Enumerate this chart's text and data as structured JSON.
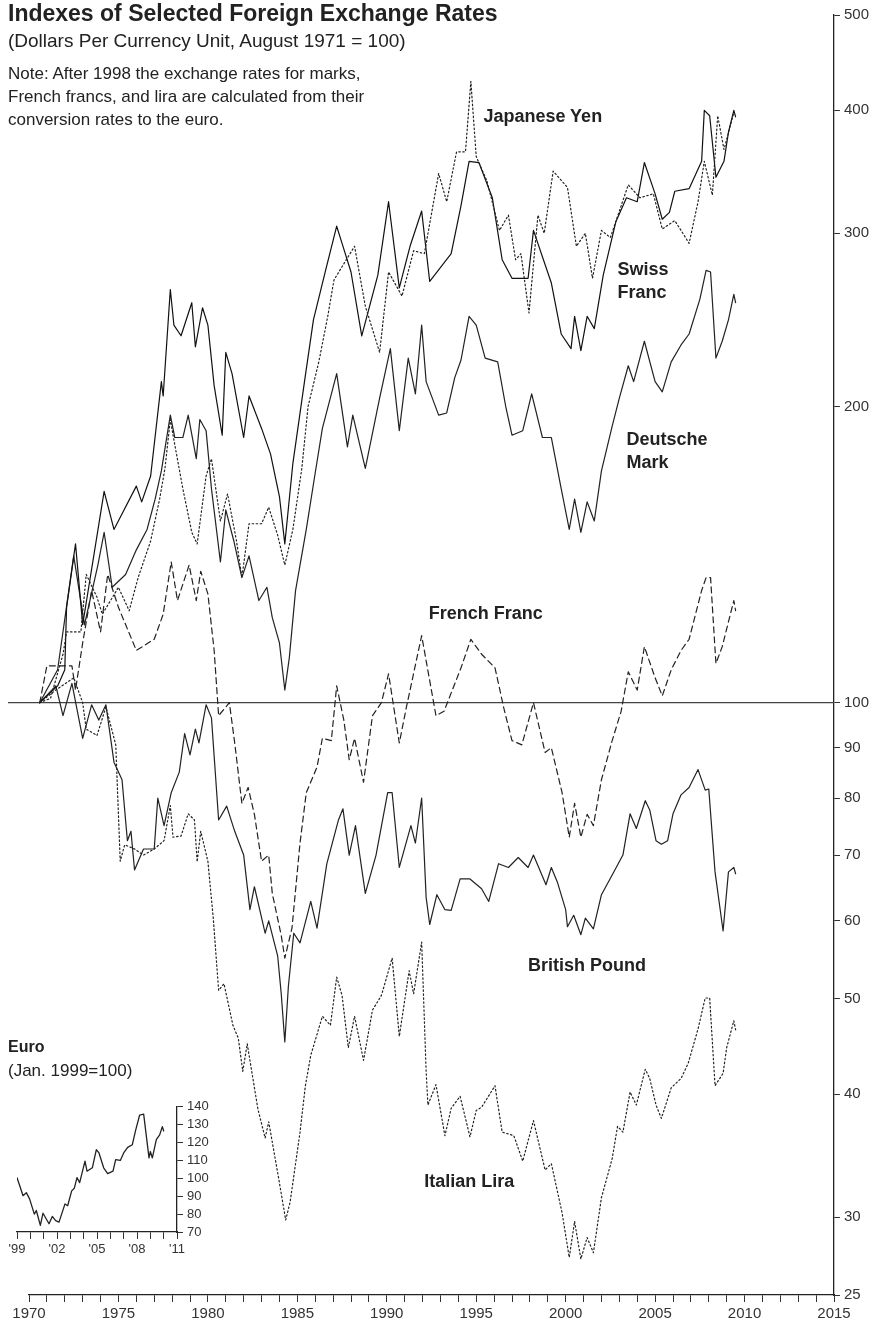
{
  "chart_data": [
    {
      "type": "line",
      "title": "Indexes of Selected Foreign Exchange Rates",
      "subtitle": "(Dollars Per Currency Unit, August 1971 = 100)",
      "annotations": [
        "Note: After 1998 the exchange rates for marks, French francs, and lira are calculated from their conversion rates to the euro."
      ],
      "xlim": [
        1970,
        2015
      ],
      "xticks": [
        1970,
        {
          "value": 1971,
          "label": null
        },
        {
          "value": 1972,
          "label": null
        },
        {
          "value": 1973,
          "label": null
        },
        {
          "value": 1974,
          "label": null
        },
        1975,
        {
          "value": 1976,
          "label": null
        },
        {
          "value": 1977,
          "label": null
        },
        {
          "value": 1978,
          "label": null
        },
        {
          "value": 1979,
          "label": null
        },
        1980,
        {
          "value": 1981,
          "label": null
        },
        {
          "value": 1982,
          "label": null
        },
        {
          "value": 1983,
          "label": null
        },
        {
          "value": 1984,
          "label": null
        },
        1985,
        {
          "value": 1986,
          "label": null
        },
        {
          "value": 1987,
          "label": null
        },
        {
          "value": 1988,
          "label": null
        },
        {
          "value": 1989,
          "label": null
        },
        1990,
        {
          "value": 1991,
          "label": null
        },
        {
          "value": 1992,
          "label": null
        },
        {
          "value": 1993,
          "label": null
        },
        {
          "value": 1994,
          "label": null
        },
        1995,
        {
          "value": 1996,
          "label": null
        },
        {
          "value": 1997,
          "label": null
        },
        {
          "value": 1998,
          "label": null
        },
        {
          "value": 1999,
          "label": null
        },
        2000,
        {
          "value": 2001,
          "label": null
        },
        {
          "value": 2002,
          "label": null
        },
        {
          "value": 2003,
          "label": null
        },
        {
          "value": 2004,
          "label": null
        },
        2005,
        {
          "value": 2006,
          "label": null
        },
        {
          "value": 2007,
          "label": null
        },
        {
          "value": 2008,
          "label": null
        },
        {
          "value": 2009,
          "label": null
        },
        2010,
        {
          "value": 2011,
          "label": null
        },
        {
          "value": 2012,
          "label": null
        },
        {
          "value": 2013,
          "label": null
        },
        {
          "value": 2014,
          "label": null
        },
        2015
      ],
      "ylim": [
        25,
        500
      ],
      "yticks": [
        25,
        30,
        40,
        50,
        60,
        70,
        80,
        90,
        100,
        200,
        300,
        400,
        500
      ],
      "log": true,
      "grid": false,
      "legend": false,
      "marker": "none",
      "ref_lines": [
        {
          "axis": "y",
          "value": 100,
          "color": "#444444"
        }
      ],
      "series": [
        {
          "name": "Japanese Yen",
          "color": "#222222",
          "line_style": "dotted",
          "x": [
            1970.6,
            1971.2,
            1971.9,
            1972.1,
            1972.9,
            1973.2,
            1973.8,
            1974.1,
            1975.0,
            1975.6,
            1976.1,
            1976.8,
            1977.3,
            1977.6,
            1977.9,
            1978.1,
            1978.6,
            1979.1,
            1979.4,
            1979.9,
            1980.2,
            1980.7,
            1981.1,
            1981.6,
            1981.9,
            1982.3,
            1983.0,
            1983.4,
            1983.9,
            1984.3,
            1984.75,
            1985.25,
            1985.6,
            1986.2,
            1986.7,
            1987.05,
            1988.2,
            1988.8,
            1989.6,
            1990.1,
            1990.85,
            1991.5,
            1992.1,
            1992.9,
            1993.35,
            1993.9,
            1994.4,
            1994.7,
            1995.0,
            1995.6,
            1996.3,
            1996.8,
            1997.2,
            1997.5,
            1997.95,
            1998.45,
            1998.8,
            1999.3,
            2000.1,
            2000.6,
            2001.1,
            2001.5,
            2002.0,
            2002.5,
            2003.0,
            2003.5,
            2004.15,
            2004.9,
            2005.4,
            2006.1,
            2006.55,
            2006.9,
            2007.4,
            2007.75,
            2008.2,
            2008.5,
            2008.85,
            2009.4
          ],
          "values": [
            100,
            101,
            112,
            118,
            118,
            135,
            128,
            123,
            131,
            124,
            134,
            146,
            161,
            173,
            194,
            185,
            165,
            149,
            145,
            170,
            177,
            153,
            163,
            146,
            134,
            152,
            152,
            158,
            148,
            138,
            150,
            173,
            200,
            222,
            247,
            269,
            291,
            253,
            227,
            274,
            259,
            288,
            286,
            345,
            323,
            363,
            363,
            428,
            359,
            339,
            302,
            313,
            282,
            286,
            249,
            313,
            300,
            347,
            334,
            291,
            300,
            270,
            302,
            297,
            316,
            336,
            326,
            329,
            303,
            309,
            300,
            293,
            323,
            355,
            328,
            395,
            365,
            398
          ]
        },
        {
          "name": "Swiss Franc",
          "color": "#111111",
          "line_style": "solid",
          "x": [
            1970.6,
            1971.6,
            1972.0,
            1972.1,
            1972.6,
            1973.0,
            1974.2,
            1974.75,
            1976.0,
            1976.3,
            1976.8,
            1977.4,
            1977.5,
            1977.9,
            1978.1,
            1978.5,
            1979.1,
            1979.3,
            1979.7,
            1980.0,
            1980.35,
            1980.8,
            1981.0,
            1981.35,
            1982.0,
            1982.3,
            1983.0,
            1983.5,
            1984.0,
            1984.3,
            1984.75,
            1985.4,
            1985.9,
            1986.6,
            1987.2,
            1987.5,
            1988.0,
            1988.6,
            1989.5,
            1990.1,
            1990.7,
            1991.3,
            1991.95,
            1992.4,
            1993.6,
            1994.15,
            1994.6,
            1995.15,
            1995.9,
            1996.45,
            1997.0,
            1997.9,
            1998.2,
            1999.2,
            1999.75,
            2000.3,
            2000.5,
            2000.85,
            2001.2,
            2001.6,
            2002.1,
            2002.8,
            2003.4,
            2004.0,
            2004.4,
            2005.0,
            2005.4,
            2005.8,
            2006.1,
            2006.9,
            2007.6,
            2007.75,
            2008.05,
            2008.4,
            2008.85,
            2009.1,
            2009.4,
            2009.5
          ],
          "values": [
            100,
            104,
            108,
            125,
            145,
            120,
            164,
            150,
            166,
            160,
            170,
            212,
            205,
            263,
            242,
            236,
            255,
            230,
            252,
            242,
            210,
            187,
            227,
            216,
            186,
            205,
            190,
            179,
            162,
            145,
            175,
            212,
            245,
            276,
            305,
            293,
            274,
            236,
            272,
            323,
            264,
            291,
            316,
            268,
            286,
            320,
            355,
            354,
            326,
            282,
            270,
            270,
            302,
            267,
            237,
            229,
            247,
            228,
            247,
            240,
            272,
            308,
            326,
            323,
            354,
            329,
            310,
            315,
            331,
            333,
            355,
            400,
            395,
            342,
            355,
            380,
            400,
            394
          ]
        },
        {
          "name": "Deutsche Mark",
          "color": "#222222",
          "line_style": "solid",
          "x": [
            1970.6,
            1971.6,
            1972.5,
            1973.1,
            1973.85,
            1974.2,
            1974.65,
            1975.4,
            1976.0,
            1976.6,
            1977.05,
            1977.4,
            1977.9,
            1978.15,
            1978.6,
            1978.9,
            1979.35,
            1979.55,
            1979.9,
            1980.2,
            1980.7,
            1981.0,
            1981.45,
            1981.9,
            1982.3,
            1982.85,
            1983.3,
            1983.6,
            1984.0,
            1984.3,
            1984.55,
            1984.9,
            1985.5,
            1985.95,
            1986.4,
            1987.2,
            1987.4,
            1987.8,
            1988.1,
            1988.8,
            1989.6,
            1990.2,
            1990.7,
            1991.2,
            1991.6,
            1991.95,
            1992.2,
            1992.9,
            1993.35,
            1993.8,
            1994.15,
            1994.6,
            1995.0,
            1995.5,
            1996.2,
            1996.65,
            1997.0,
            1997.6,
            1998.1,
            1998.7,
            1999.2,
            1999.75,
            2000.2,
            2000.5,
            2000.85,
            2001.2,
            2001.6,
            2002.0,
            2002.6,
            2003.0,
            2003.5,
            2003.8,
            2004.4,
            2005.0,
            2005.4,
            2005.9,
            2006.45,
            2006.9,
            2007.5,
            2007.85,
            2008.1,
            2008.4,
            2008.75,
            2009.1,
            2009.4,
            2009.5
          ],
          "values": [
            100,
            108,
            141,
            120,
            138,
            149,
            131,
            135,
            143,
            150,
            161,
            172,
            196,
            186,
            186,
            196,
            177,
            194,
            189,
            165,
            139,
            157,
            146,
            134,
            141,
            127,
            131,
            122,
            115,
            103,
            111,
            130,
            150,
            169,
            190,
            216,
            204,
            182,
            196,
            173,
            204,
            229,
            189,
            224,
            206,
            242,
            212,
            196,
            197,
            214,
            223,
            247,
            242,
            224,
            222,
            200,
            187,
            189,
            206,
            186,
            186,
            165,
            150,
            161,
            149,
            160,
            153,
            172,
            191,
            204,
            220,
            212,
            233,
            212,
            207,
            222,
            231,
            237,
            257,
            275,
            274,
            224,
            233,
            245,
            260,
            255
          ]
        },
        {
          "name": "French Franc",
          "color": "#222222",
          "line_style": "dashed",
          "x": [
            1970.6,
            1971.0,
            1972.4,
            1972.6,
            1973.0,
            1973.5,
            1974.0,
            1974.4,
            1975.0,
            1976.0,
            1977.0,
            1977.5,
            1977.95,
            1978.3,
            1978.95,
            1979.35,
            1979.6,
            1980.0,
            1980.35,
            1980.6,
            1981.2,
            1981.5,
            1981.9,
            1982.25,
            1982.6,
            1983.0,
            1983.4,
            1983.6,
            1984.1,
            1984.3,
            1984.7,
            1985.15,
            1985.5,
            1986.1,
            1986.4,
            1986.9,
            1987.2,
            1987.6,
            1987.9,
            1988.2,
            1988.7,
            1989.2,
            1989.7,
            1990.1,
            1990.7,
            1991.1,
            1991.95,
            1992.75,
            1993.2,
            1994.15,
            1994.7,
            1995.3,
            1996.05,
            1996.55,
            1997.0,
            1997.55,
            1998.2,
            1998.85,
            1999.2,
            1999.8,
            2000.2,
            2000.5,
            2000.85,
            2001.2,
            2001.55,
            2002.0,
            2002.6,
            2003.1,
            2003.5,
            2004.0,
            2004.4,
            2005.0,
            2005.4,
            2005.9,
            2006.45,
            2006.9,
            2007.6,
            2007.85,
            2008.1,
            2008.4,
            2008.75,
            2009.4,
            2009.5
          ],
          "values": [
            100,
            109,
            109,
            103,
            115,
            130,
            118,
            135,
            125,
            113,
            116,
            123,
            139,
            127,
            138,
            127,
            136,
            129,
            113,
            97,
            100,
            91,
            79,
            82,
            77,
            69,
            70,
            64,
            58,
            55,
            59,
            72,
            81,
            86,
            92,
            91.5,
            104,
            96,
            87.5,
            92,
            83,
            97,
            100,
            107,
            91,
            99,
            117,
            97,
            98,
            108.5,
            116,
            112,
            108.5,
            98.6,
            91.5,
            90.6,
            100,
            89,
            90,
            81,
            73,
            79,
            73,
            77,
            75,
            83.5,
            91.5,
            98,
            107.5,
            103,
            114,
            106,
            101.6,
            108,
            113,
            116,
            130,
            134,
            134,
            109.6,
            114,
            127,
            124
          ]
        },
        {
          "name": "British Pound",
          "color": "#222222",
          "line_style": "solid",
          "x": [
            1970.6,
            1971.5,
            1971.9,
            1972.4,
            1973.0,
            1973.5,
            1973.9,
            1974.3,
            1974.75,
            1975.2,
            1975.5,
            1975.7,
            1975.9,
            1976.4,
            1977.0,
            1977.2,
            1977.55,
            1977.95,
            1978.4,
            1978.7,
            1979.0,
            1979.3,
            1979.5,
            1979.9,
            1980.2,
            1980.6,
            1981.05,
            1981.5,
            1982.0,
            1982.35,
            1982.6,
            1983.2,
            1983.4,
            1983.9,
            1984.1,
            1984.3,
            1984.5,
            1984.8,
            1985.15,
            1985.75,
            1986.1,
            1986.65,
            1987.3,
            1987.55,
            1987.9,
            1988.25,
            1988.8,
            1989.4,
            1990.05,
            1990.3,
            1990.7,
            1991.35,
            1991.6,
            1991.95,
            1992.2,
            1992.4,
            1992.8,
            1993.25,
            1993.6,
            1994.1,
            1994.65,
            1995.3,
            1995.7,
            1996.25,
            1996.8,
            1997.35,
            1997.9,
            1998.2,
            1998.9,
            1999.2,
            1999.55,
            2000.0,
            2000.1,
            2000.45,
            2000.85,
            2001.1,
            2001.55,
            2002.0,
            2002.6,
            2002.9,
            2003.2,
            2003.6,
            2003.95,
            2004.45,
            2004.7,
            2005.05,
            2005.35,
            2005.7,
            2006.0,
            2006.45,
            2006.9,
            2007.4,
            2007.8,
            2008.0,
            2008.35,
            2008.8,
            2009.1,
            2009.4,
            2009.5
          ],
          "values": [
            100,
            104,
            97,
            104.6,
            92,
            99.5,
            96,
            99.5,
            87,
            83.5,
            72.4,
            74,
            67.6,
            71,
            71,
            80,
            75,
            81,
            85,
            93,
            88.5,
            94,
            91,
            99.5,
            96.5,
            76,
            78.5,
            74,
            70,
            61.6,
            65,
            58.3,
            60,
            55.3,
            50.6,
            45.2,
            51.5,
            58.3,
            57,
            62.8,
            59,
            68.6,
            76,
            78,
            70,
            75,
            64,
            70,
            81,
            81,
            68,
            75,
            72,
            80,
            63.4,
            59.5,
            63.8,
            61.6,
            61.5,
            66.2,
            66.2,
            64.7,
            62.8,
            68.6,
            68,
            69.6,
            68,
            70,
            65.3,
            68,
            65.6,
            61.6,
            59.2,
            60.8,
            58.1,
            60.4,
            58.9,
            63.8,
            66.8,
            68.4,
            70,
            77.1,
            74.5,
            79.5,
            77.8,
            72.4,
            71.8,
            72.4,
            77.1,
            80.6,
            82,
            85.5,
            81.5,
            81.7,
            67.3,
            58.6,
            67.3,
            68,
            67
          ]
        },
        {
          "name": "Italian Lira",
          "color": "#222222",
          "line_style": "dotted",
          "x": [
            1970.6,
            1971.5,
            1972.5,
            1973.0,
            1973.2,
            1973.8,
            1974.3,
            1974.85,
            1975.1,
            1975.35,
            1975.9,
            1976.4,
            1977.0,
            1977.55,
            1977.9,
            1978.05,
            1978.5,
            1978.9,
            1979.25,
            1979.4,
            1979.6,
            1980.0,
            1980.3,
            1980.6,
            1980.9,
            1981.4,
            1981.7,
            1981.95,
            1982.2,
            1982.8,
            1983.2,
            1983.4,
            1983.95,
            1984.35,
            1984.6,
            1985.15,
            1985.45,
            1985.75,
            1986.4,
            1986.85,
            1987.2,
            1987.5,
            1987.85,
            1988.2,
            1988.7,
            1989.2,
            1989.7,
            1990.3,
            1990.7,
            1991.25,
            1991.5,
            1991.95,
            1992.2,
            1992.3,
            1992.75,
            1993.25,
            1993.6,
            1994.1,
            1994.65,
            1995.0,
            1995.3,
            1996.05,
            1996.45,
            1997.1,
            1997.6,
            1998.2,
            1998.85,
            1999.2,
            1999.8,
            2000.2,
            2000.5,
            2000.85,
            2001.2,
            2001.55,
            2002.0,
            2002.6,
            2002.9,
            2003.2,
            2003.6,
            2003.95,
            2004.45,
            2004.7,
            2005.05,
            2005.35,
            2005.9,
            2006.45,
            2006.85,
            2007.4,
            2007.8,
            2008.05,
            2008.35,
            2008.8,
            2009.0,
            2009.4,
            2009.5
          ],
          "values": [
            100,
            103,
            106,
            100,
            94,
            92.6,
            99,
            90.6,
            69,
            71.7,
            71,
            70,
            71,
            72.4,
            78.6,
            73,
            73.2,
            77.1,
            76,
            68.9,
            74,
            69,
            60.4,
            51,
            51.8,
            47,
            45.6,
            42.2,
            45,
            38.6,
            36.1,
            37.5,
            32.9,
            29.8,
            31.1,
            36.6,
            40.8,
            43.8,
            48,
            47,
            52.6,
            50.4,
            44.6,
            48,
            43.3,
            48.7,
            50.4,
            55,
            45.8,
            53.4,
            50.6,
            57.1,
            42.2,
            39,
            40.9,
            36.3,
            38.7,
            39.8,
            36.2,
            38.5,
            38.8,
            40.8,
            36.6,
            36.3,
            34.2,
            37.6,
            33.5,
            34,
            30.3,
            27.3,
            29.7,
            27.2,
            28.6,
            27.6,
            31.4,
            34.4,
            37.1,
            36.6,
            40.2,
            39,
            42.4,
            41.5,
            39,
            37.8,
            40.6,
            41.5,
            43,
            46.6,
            50.1,
            50.1,
            40.8,
            42,
            44.6,
            47.5,
            46.5
          ]
        }
      ]
    },
    {
      "type": "line",
      "title": "Euro",
      "subtitle": "(Jan. 1999=100)",
      "xlim": [
        1999,
        2011
      ],
      "xticks": [
        {
          "value": 1999,
          "label": "'99"
        },
        {
          "value": 2000,
          "label": null
        },
        {
          "value": 2001,
          "label": null
        },
        {
          "value": 2002,
          "label": "'02"
        },
        {
          "value": 2003,
          "label": null
        },
        {
          "value": 2004,
          "label": null
        },
        {
          "value": 2005,
          "label": "'05"
        },
        {
          "value": 2006,
          "label": null
        },
        {
          "value": 2007,
          "label": null
        },
        {
          "value": 2008,
          "label": "'08"
        },
        {
          "value": 2009,
          "label": null
        },
        {
          "value": 2010,
          "label": null
        },
        {
          "value": 2011,
          "label": "'11"
        }
      ],
      "ylim": [
        70,
        140
      ],
      "yticks": [
        70,
        80,
        90,
        100,
        110,
        120,
        130,
        140
      ],
      "grid": false,
      "legend": false,
      "marker": "none",
      "series": [
        {
          "color": "#222222",
          "line_style": "solid",
          "x": [
            1999.0,
            1999.25,
            1999.45,
            1999.7,
            1999.95,
            2000.3,
            2000.45,
            2000.75,
            2000.95,
            2001.4,
            2001.65,
            2001.9,
            2002.15,
            2002.6,
            2002.8,
            2003.1,
            2003.3,
            2003.5,
            2003.7,
            2004.1,
            2004.25,
            2004.65,
            2004.95,
            2005.15,
            2005.5,
            2005.8,
            2006.2,
            2006.4,
            2006.75,
            2007.0,
            2007.3,
            2007.65,
            2007.9,
            2008.2,
            2008.5,
            2008.9,
            2009.0,
            2009.15,
            2009.45,
            2009.7,
            2009.9,
            2010.0
          ],
          "values": [
            100.4,
            94.9,
            90.3,
            92,
            88.4,
            80,
            82,
            73.7,
            80.5,
            74.6,
            78.7,
            76.4,
            75.5,
            85.7,
            84.7,
            93,
            94.5,
            100.4,
            97.6,
            109.6,
            104,
            105.9,
            116,
            114.2,
            105.9,
            102.6,
            104,
            110.5,
            110,
            114.2,
            117.3,
            118.8,
            127,
            135.4,
            135.9,
            111.4,
            115,
            111.4,
            121.6,
            124.3,
            128.9,
            126.5
          ]
        }
      ]
    }
  ]
}
